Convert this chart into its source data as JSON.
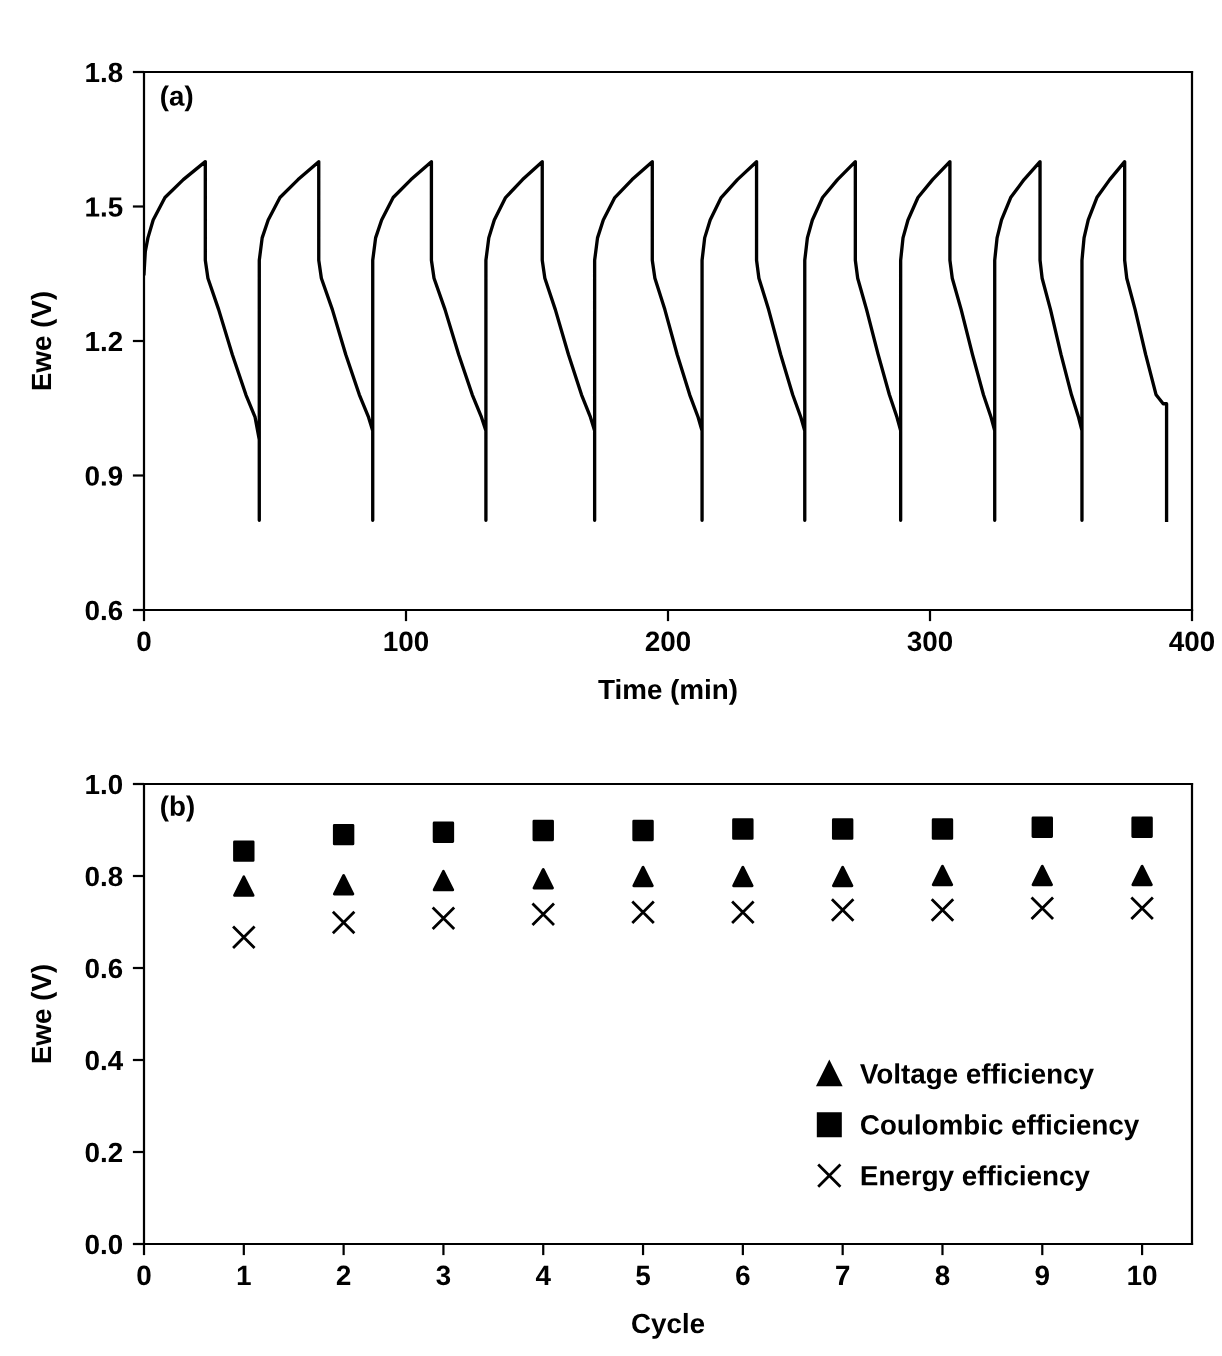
{
  "chart_data": [
    {
      "type": "line",
      "xlabel": "Time (min)",
      "ylabel": "Ewe (V)",
      "annotations": [
        "(a)"
      ],
      "xlim": [
        0,
        400
      ],
      "xticks": [
        0,
        100,
        200,
        300,
        400
      ],
      "ylim": [
        0.6,
        1.8
      ],
      "yticks": [
        {
          "value": 0.6,
          "label": "0.6"
        },
        {
          "value": 0.9,
          "label": "0.9"
        },
        {
          "value": 1.2,
          "label": "1.2"
        },
        {
          "value": 1.5,
          "label": "1.5"
        },
        {
          "value": 1.8,
          "label": "1.8"
        }
      ],
      "grid": false,
      "legend": false,
      "marker": "none",
      "line_style": "solid",
      "series": [
        {
          "color": "#000000",
          "x": [
            0,
            0.5,
            1.5,
            3.5,
            8,
            15,
            23.4,
            23.4,
            24.4,
            28.5,
            33.7,
            38.9,
            42.4,
            44,
            44,
            44,
            45.1,
            47.4,
            51.9,
            58.8,
            66.7,
            66.7,
            67.7,
            71.9,
            77,
            82.2,
            85.7,
            87.3,
            87.3,
            87.3,
            88.4,
            90.7,
            95.1,
            101.9,
            109.7,
            109.7,
            110.7,
            114.9,
            120.1,
            125.3,
            128.8,
            130.5,
            130.5,
            130.5,
            131.6,
            133.7,
            138,
            144.5,
            152,
            152,
            153,
            157,
            162,
            167,
            170.4,
            172,
            172,
            172,
            173.1,
            175.3,
            179.7,
            186.3,
            194,
            194,
            195,
            198.8,
            203.5,
            208.3,
            211.5,
            213,
            213,
            213,
            214,
            216.1,
            220.3,
            226.5,
            233.8,
            233.8,
            234.7,
            238.4,
            243,
            247.6,
            250.7,
            252.2,
            252.2,
            252.2,
            253.2,
            255.1,
            259,
            264.7,
            271.5,
            271.5,
            272.4,
            275.8,
            280.2,
            284.5,
            287.4,
            288.8,
            288.8,
            288.8,
            289.7,
            291.6,
            295.4,
            301,
            307.6,
            307.6,
            308.5,
            311.9,
            316.2,
            320.4,
            323.3,
            324.7,
            324.7,
            324.7,
            325.6,
            327.3,
            330.8,
            335.9,
            342,
            342,
            342.8,
            346,
            350,
            354,
            356.7,
            358,
            358,
            358,
            358.8,
            360.4,
            363.7,
            368.6,
            374.3,
            374.3,
            375.1,
            378.3,
            382.3,
            386.3,
            389,
            390.3,
            390.3
          ],
          "values": [
            1.35,
            1.4,
            1.43,
            1.47,
            1.52,
            1.56,
            1.6,
            1.38,
            1.34,
            1.27,
            1.17,
            1.08,
            1.03,
            0.98,
            0.8,
            1.38,
            1.43,
            1.47,
            1.52,
            1.56,
            1.6,
            1.38,
            1.34,
            1.27,
            1.17,
            1.08,
            1.03,
            1.0,
            0.8,
            1.38,
            1.43,
            1.47,
            1.52,
            1.56,
            1.6,
            1.38,
            1.34,
            1.27,
            1.17,
            1.08,
            1.03,
            1.0,
            0.8,
            1.38,
            1.43,
            1.47,
            1.52,
            1.56,
            1.6,
            1.38,
            1.34,
            1.27,
            1.17,
            1.08,
            1.03,
            1.0,
            0.8,
            1.38,
            1.43,
            1.47,
            1.52,
            1.56,
            1.6,
            1.38,
            1.34,
            1.27,
            1.17,
            1.08,
            1.03,
            1.0,
            0.8,
            1.38,
            1.43,
            1.47,
            1.52,
            1.56,
            1.6,
            1.38,
            1.34,
            1.27,
            1.17,
            1.08,
            1.03,
            1.0,
            0.8,
            1.38,
            1.43,
            1.47,
            1.52,
            1.56,
            1.6,
            1.38,
            1.34,
            1.27,
            1.17,
            1.08,
            1.03,
            1.0,
            0.8,
            1.38,
            1.43,
            1.47,
            1.52,
            1.56,
            1.6,
            1.38,
            1.34,
            1.27,
            1.17,
            1.08,
            1.03,
            1.0,
            0.8,
            1.38,
            1.43,
            1.47,
            1.52,
            1.56,
            1.6,
            1.38,
            1.34,
            1.27,
            1.17,
            1.08,
            1.03,
            1.0,
            0.8,
            1.38,
            1.43,
            1.47,
            1.52,
            1.56,
            1.6,
            1.38,
            1.34,
            1.27,
            1.17,
            1.08,
            1.06,
            1.06,
            0.8
          ]
        }
      ]
    },
    {
      "type": "scatter",
      "xlabel": "Cycle",
      "ylabel": "Ewe (V)",
      "annotations": [
        "(b)"
      ],
      "x": [
        1,
        2,
        3,
        4,
        5,
        6,
        7,
        8,
        9,
        10
      ],
      "xlim": [
        0,
        10.5
      ],
      "xticks": [
        0,
        1,
        2,
        3,
        4,
        5,
        6,
        7,
        8,
        9,
        10
      ],
      "ylim": [
        0,
        1.0
      ],
      "yticks": [
        {
          "value": 0,
          "label": "0.0"
        },
        {
          "value": 0.2,
          "label": "0.2"
        },
        {
          "value": 0.4,
          "label": "0.4"
        },
        {
          "value": 0.6,
          "label": "0.6"
        },
        {
          "value": 0.8,
          "label": "0.8"
        },
        {
          "value": 1.0,
          "label": "1.0"
        }
      ],
      "grid": false,
      "legend": "bottom right",
      "series": [
        {
          "name": "Voltage efficiency",
          "color": "#000000",
          "marker": "triangle",
          "values": [
            0.778,
            0.781,
            0.79,
            0.794,
            0.799,
            0.799,
            0.799,
            0.801,
            0.801,
            0.801
          ]
        },
        {
          "name": "Coulombic efficiency",
          "color": "#000000",
          "marker": "square",
          "values": [
            0.854,
            0.89,
            0.895,
            0.899,
            0.899,
            0.902,
            0.902,
            0.902,
            0.906,
            0.906
          ]
        },
        {
          "name": "Energy efficiency",
          "color": "#000000",
          "marker": "cross",
          "values": [
            0.667,
            0.699,
            0.708,
            0.717,
            0.721,
            0.721,
            0.726,
            0.726,
            0.73,
            0.73
          ]
        }
      ]
    }
  ]
}
